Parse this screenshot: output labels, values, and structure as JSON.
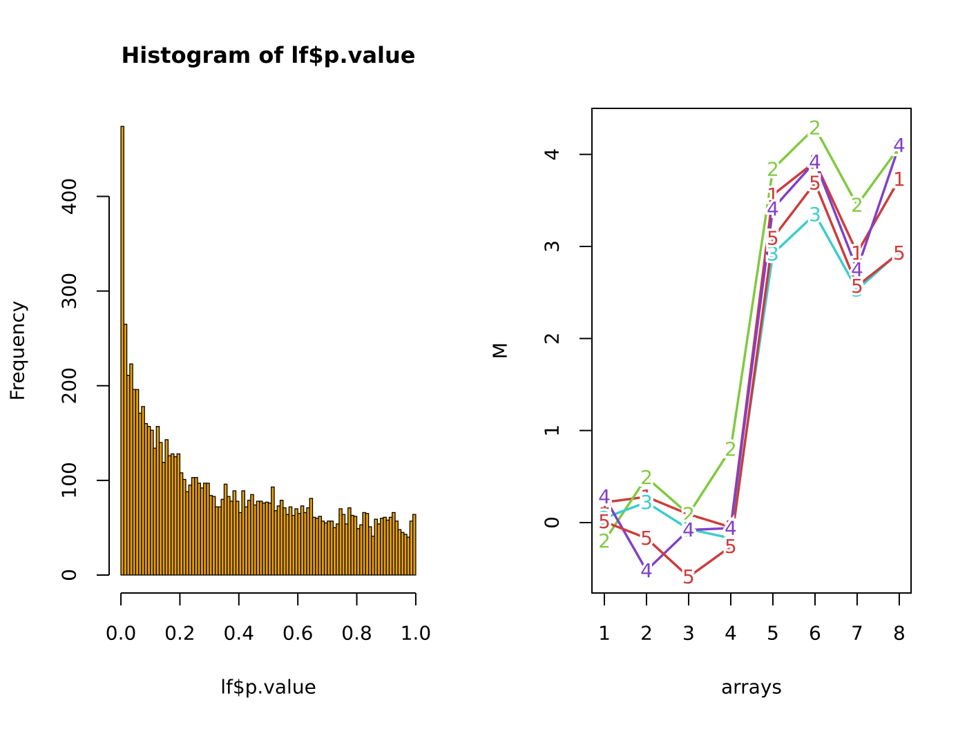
{
  "chart_data": [
    {
      "type": "histogram",
      "title": "Histogram of lf$p.value",
      "x_label": "lf$p.value",
      "y_label": "Frequency",
      "color": "#e69f00",
      "bins": [
        0,
        0.01,
        0.02,
        0.03,
        0.04,
        0.05,
        0.06,
        0.07,
        0.08,
        0.09,
        0.1,
        0.11,
        0.12,
        0.13,
        0.14,
        0.15,
        0.16,
        0.17,
        0.18,
        0.19,
        0.2,
        0.21,
        0.22,
        0.23,
        0.24,
        0.25,
        0.26,
        0.27,
        0.28,
        0.29,
        0.3,
        0.31,
        0.32,
        0.33,
        0.34,
        0.35,
        0.36,
        0.37,
        0.38,
        0.39,
        0.4,
        0.41,
        0.42,
        0.43,
        0.44,
        0.45,
        0.46,
        0.47,
        0.48,
        0.49,
        0.5,
        0.51,
        0.52,
        0.53,
        0.54,
        0.55,
        0.56,
        0.57,
        0.58,
        0.59,
        0.6,
        0.61,
        0.62,
        0.63,
        0.64,
        0.65,
        0.66,
        0.67,
        0.68,
        0.69,
        0.7,
        0.71,
        0.72,
        0.73,
        0.74,
        0.75,
        0.76,
        0.77,
        0.78,
        0.79,
        0.8,
        0.81,
        0.82,
        0.83,
        0.84,
        0.85,
        0.86,
        0.87,
        0.88,
        0.89,
        0.9,
        0.91,
        0.92,
        0.93,
        0.94,
        0.95,
        0.96,
        0.97,
        0.98,
        0.99,
        1
      ],
      "values": [
        474,
        265,
        211,
        223,
        196,
        196,
        171,
        178,
        160,
        157,
        153,
        134,
        157,
        140,
        119,
        143,
        126,
        128,
        125,
        128,
        108,
        101,
        88,
        95,
        103,
        103,
        97,
        92,
        97,
        97,
        84,
        83,
        72,
        72,
        80,
        96,
        83,
        78,
        89,
        78,
        66,
        89,
        72,
        79,
        85,
        74,
        78,
        78,
        76,
        77,
        76,
        93,
        68,
        73,
        79,
        71,
        64,
        72,
        63,
        70,
        65,
        73,
        66,
        71,
        81,
        61,
        60,
        62,
        57,
        55,
        57,
        57,
        50,
        54,
        70,
        64,
        54,
        71,
        63,
        62,
        49,
        53,
        66,
        65,
        51,
        41,
        59,
        54,
        60,
        61,
        58,
        61,
        66,
        57,
        48,
        45,
        43,
        40,
        57,
        64
      ],
      "xlim": [
        -0.04,
        1.04
      ],
      "ylim": [
        -19,
        493
      ],
      "xticks": [
        {
          "value": 0,
          "label": "0.0"
        },
        {
          "value": 0.2,
          "label": "0.2"
        },
        {
          "value": 0.4,
          "label": "0.4"
        },
        {
          "value": 0.6,
          "label": "0.6"
        },
        {
          "value": 0.8,
          "label": "0.8"
        },
        {
          "value": 1,
          "label": "1.0"
        }
      ],
      "yticks": [
        0,
        100,
        200,
        300,
        400
      ]
    },
    {
      "type": "line",
      "x_label": "arrays",
      "y_label": "M",
      "x": [
        1,
        2,
        3,
        4,
        5,
        6,
        7,
        8
      ],
      "series": [
        {
          "name": "1",
          "color": "#cd3c3c",
          "values": [
            0.22,
            0.28,
            0.09,
            -0.05,
            3.56,
            3.92,
            2.93,
            3.73
          ]
        },
        {
          "name": "2",
          "color": "#80c940",
          "values": [
            -0.2,
            0.49,
            0.09,
            0.8,
            3.84,
            4.29,
            3.45,
            4.08
          ]
        },
        {
          "name": "3",
          "color": "#3ccccc",
          "values": [
            0.05,
            0.22,
            -0.07,
            -0.17,
            2.92,
            3.35,
            2.53,
            2.94
          ]
        },
        {
          "name": "4",
          "color": "#8040c8",
          "values": [
            0.28,
            -0.52,
            -0.08,
            -0.06,
            3.41,
            3.92,
            2.75,
            4.1
          ]
        },
        {
          "name": "5",
          "color": "#cd3c3c",
          "values": [
            0.01,
            -0.17,
            -0.59,
            -0.26,
            3.09,
            3.69,
            2.57,
            2.93
          ]
        }
      ],
      "xlim": [
        0.705,
        8.28
      ],
      "ylim": [
        -0.765,
        4.5
      ],
      "xticks": [
        1,
        2,
        3,
        4,
        5,
        6,
        7,
        8
      ],
      "yticks": [
        0,
        1,
        2,
        3,
        4
      ]
    }
  ]
}
